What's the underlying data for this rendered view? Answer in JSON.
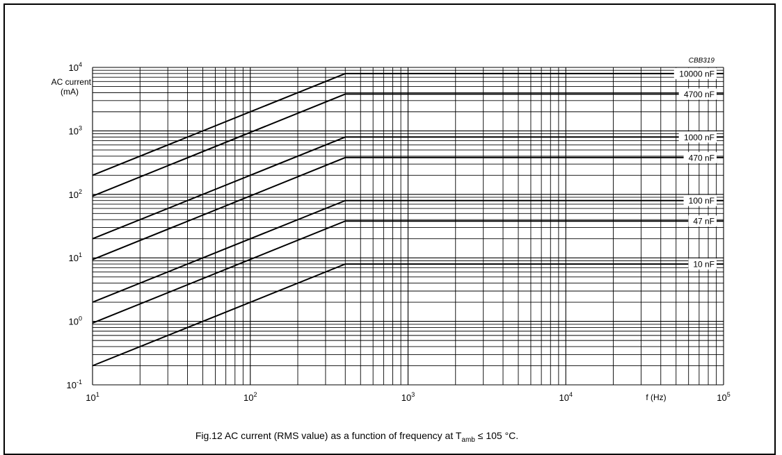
{
  "figure": {
    "code": "CBB319",
    "caption_prefix": "Fig.12  AC current (RMS value) as a function of frequency at T",
    "caption_sub": "amb",
    "caption_suffix": " ≤ 105 °C."
  },
  "chart_data": {
    "type": "line",
    "title": "",
    "ylabel_line1": "AC current",
    "ylabel_line2": "(mA)",
    "xlabel": "f (Hz)",
    "x_scale": "log",
    "y_scale": "log",
    "xlim": [
      10,
      100000
    ],
    "ylim": [
      0.1,
      10000
    ],
    "grid": true,
    "x_ticks": [
      {
        "value": 10,
        "base": "10",
        "exp": "1"
      },
      {
        "value": 100,
        "base": "10",
        "exp": "2"
      },
      {
        "value": 1000,
        "base": "10",
        "exp": "3"
      },
      {
        "value": 10000,
        "base": "10",
        "exp": "4"
      },
      {
        "value": 100000,
        "base": "10",
        "exp": "5"
      }
    ],
    "y_ticks": [
      {
        "value": 0.1,
        "base": "10",
        "exp": "-1"
      },
      {
        "value": 1,
        "base": "10",
        "exp": "0"
      },
      {
        "value": 10,
        "base": "10",
        "exp": "1"
      },
      {
        "value": 100,
        "base": "10",
        "exp": "2"
      },
      {
        "value": 1000,
        "base": "10",
        "exp": "3"
      },
      {
        "value": 10000,
        "base": "10",
        "exp": "4"
      }
    ],
    "series": [
      {
        "name": "10000 nF",
        "points": [
          [
            10,
            200
          ],
          [
            400,
            8000
          ],
          [
            100000,
            8000
          ]
        ]
      },
      {
        "name": "4700 nF",
        "points": [
          [
            10,
            94
          ],
          [
            400,
            3800
          ],
          [
            100000,
            3800
          ]
        ]
      },
      {
        "name": "1000 nF",
        "points": [
          [
            10,
            20
          ],
          [
            400,
            800
          ],
          [
            100000,
            800
          ]
        ]
      },
      {
        "name": "470 nF",
        "points": [
          [
            10,
            9.4
          ],
          [
            400,
            380
          ],
          [
            100000,
            380
          ]
        ]
      },
      {
        "name": "100 nF",
        "points": [
          [
            10,
            2
          ],
          [
            400,
            80
          ],
          [
            100000,
            80
          ]
        ]
      },
      {
        "name": "47 nF",
        "points": [
          [
            10,
            0.94
          ],
          [
            400,
            38
          ],
          [
            100000,
            38
          ]
        ]
      },
      {
        "name": "10 nF",
        "points": [
          [
            10,
            0.2
          ],
          [
            400,
            8
          ],
          [
            100000,
            8
          ]
        ]
      }
    ]
  }
}
